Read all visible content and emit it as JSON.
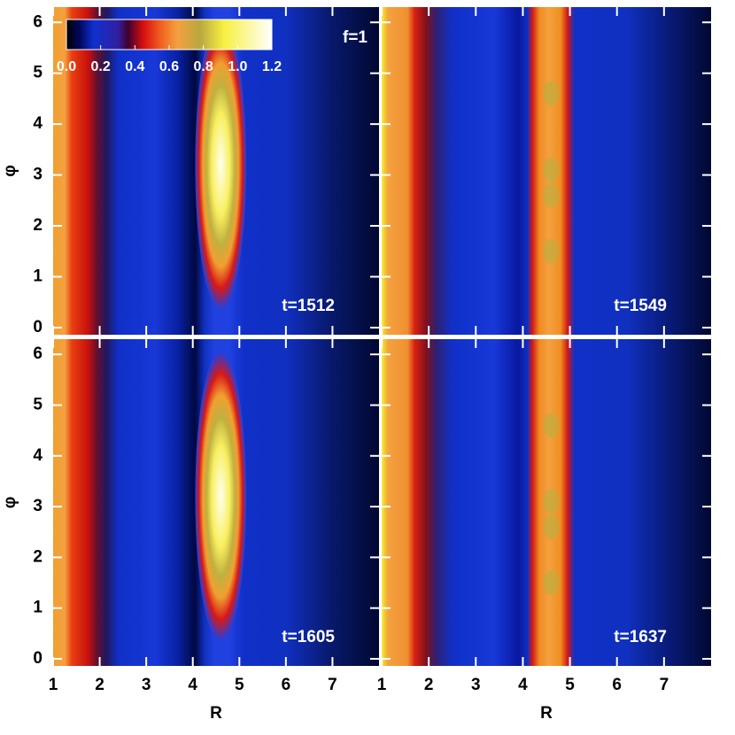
{
  "chart_data": {
    "type": "heatmap",
    "xlabel": "R",
    "ylabel": "φ",
    "xlim": [
      1,
      8
    ],
    "xticks": [
      1,
      2,
      3,
      4,
      5,
      6,
      7
    ],
    "ylim": [
      -0.14,
      6.3
    ],
    "yticks": [
      0,
      1,
      2,
      3,
      4,
      5,
      6
    ],
    "annotation": "f=1",
    "panels": [
      {
        "label": "t=1512",
        "style": "blob"
      },
      {
        "label": "t=1549",
        "style": "ring"
      },
      {
        "label": "t=1605",
        "style": "blob"
      },
      {
        "label": "t=1637",
        "style": "ring"
      }
    ],
    "colorbar": {
      "lim": [
        0,
        1.2
      ],
      "ticks": [
        {
          "value": 0,
          "label": "0.0"
        },
        {
          "value": 0.2,
          "label": "0.2"
        },
        {
          "value": 0.4,
          "label": "0.4"
        },
        {
          "value": 0.6,
          "label": "0.6"
        },
        {
          "value": 0.8,
          "label": "0.8"
        },
        {
          "value": 1,
          "label": "1.0"
        },
        {
          "value": 1.2,
          "label": "1.2"
        }
      ]
    }
  }
}
